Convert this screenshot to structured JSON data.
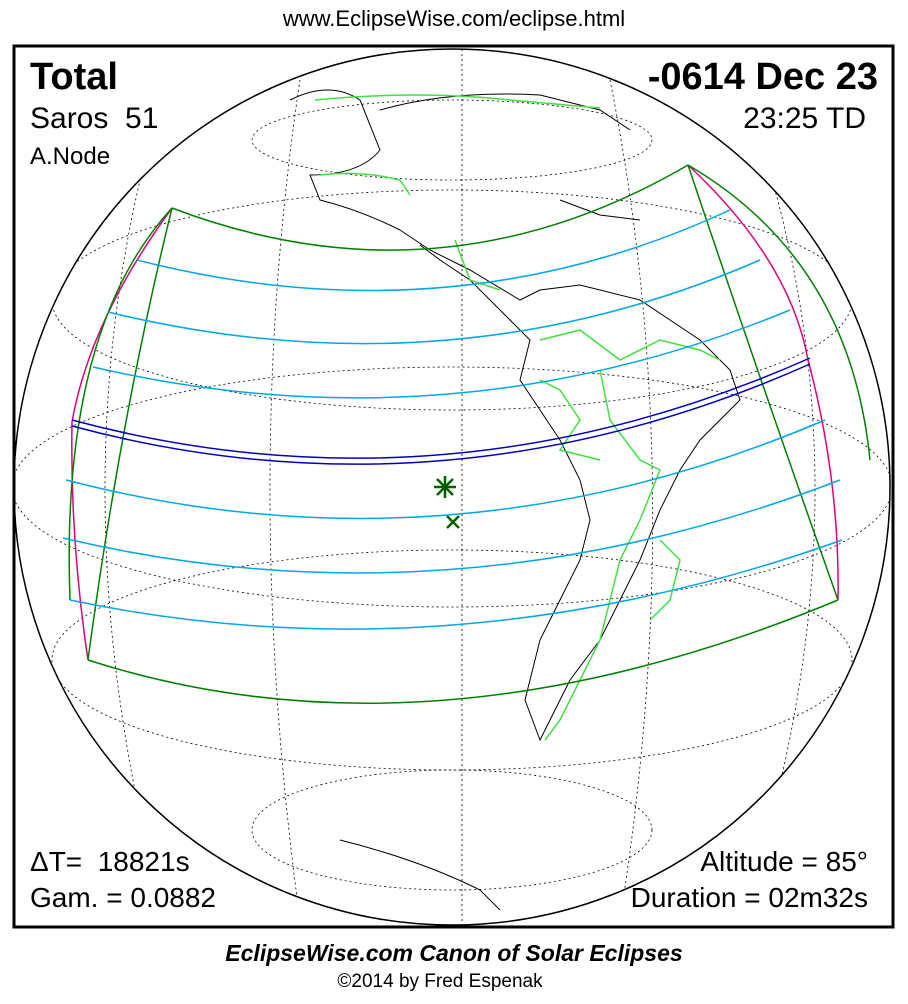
{
  "header": {
    "url": "www.EclipseWise.com/eclipse.html"
  },
  "eclipse": {
    "type": "Total",
    "date": "-0614 Dec 23",
    "saros": "Saros  51",
    "time": "23:25 TD",
    "node": "A.Node",
    "delta_t": "ΔT=  18821s",
    "gamma": "Gam. = 0.0882",
    "altitude": "Altitude = 85°",
    "duration": "Duration = 02m32s"
  },
  "footer": {
    "title": "EclipseWise.com Canon of Solar Eclipses",
    "credit": "©2014 by Fred Espenak"
  },
  "colors": {
    "penumbra_limits": "#008000",
    "penumbra_lines": "#00a8e8",
    "central_path": "#0000c0",
    "rise_set": "#e0007f",
    "borders": "#40e040",
    "coastlines": "#000000"
  },
  "markers": {
    "greatest_eclipse": "star-icon",
    "subsolar_point": "x-icon"
  }
}
